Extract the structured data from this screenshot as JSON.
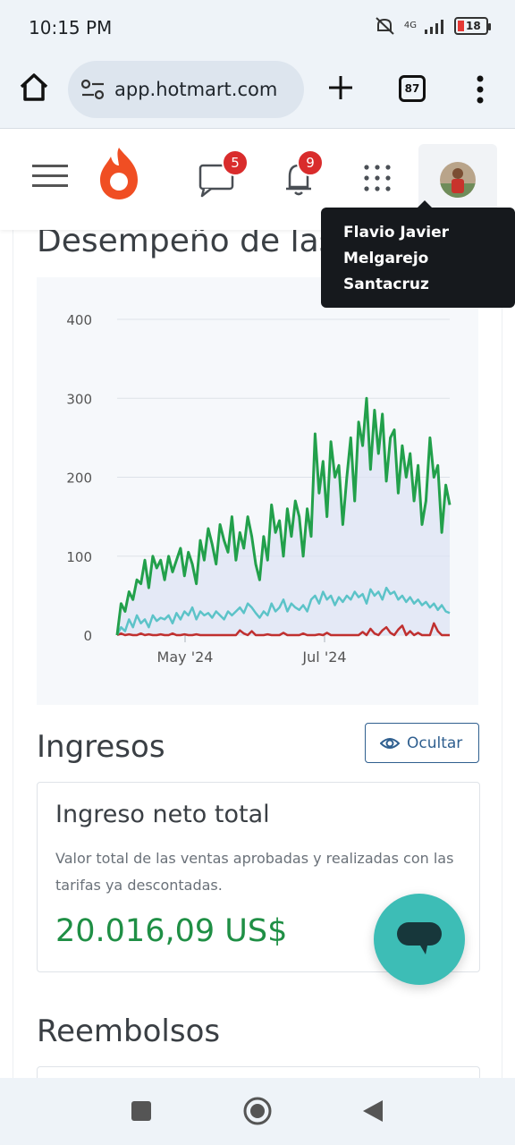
{
  "status_bar": {
    "time": "10:15 PM",
    "network": "4G",
    "battery": "18"
  },
  "browser": {
    "url": "app.hotmart.com",
    "tab_count": "87"
  },
  "header": {
    "messages_badge": "5",
    "notifications_badge": "9",
    "user_tooltip": [
      "Flavio Javier",
      "Melgarejo",
      "Santacruz"
    ]
  },
  "performance": {
    "title": "Desempeño de las"
  },
  "chart_data": {
    "type": "area",
    "x_tick_labels": [
      "May '24",
      "Jul '24"
    ],
    "y_tick_labels": [
      "400",
      "300",
      "200",
      "100",
      "0"
    ],
    "ylim": [
      0,
      400
    ],
    "grid": true,
    "colors": {
      "green": "#22a04b",
      "teal": "#5cc3c8",
      "red": "#c0302f",
      "fill": "#dde3f3"
    },
    "series": [
      {
        "color": "#22a04b",
        "values": [
          0,
          40,
          30,
          55,
          45,
          70,
          65,
          95,
          60,
          100,
          85,
          95,
          70,
          100,
          80,
          95,
          110,
          75,
          105,
          90,
          65,
          120,
          95,
          135,
          115,
          90,
          140,
          120,
          105,
          150,
          95,
          130,
          110,
          150,
          125,
          90,
          70,
          125,
          95,
          165,
          130,
          145,
          100,
          160,
          125,
          170,
          150,
          100,
          160,
          125,
          255,
          180,
          220,
          150,
          245,
          200,
          215,
          140,
          200,
          250,
          170,
          270,
          240,
          300,
          210,
          285,
          230,
          280,
          195,
          250,
          260,
          180,
          240,
          200,
          230,
          170,
          215,
          140,
          170,
          250,
          200,
          215,
          130,
          190,
          165
        ]
      },
      {
        "color": "#5cc3c8",
        "values": [
          0,
          10,
          5,
          20,
          10,
          25,
          15,
          20,
          10,
          25,
          18,
          22,
          20,
          25,
          15,
          28,
          20,
          30,
          25,
          35,
          20,
          30,
          25,
          28,
          22,
          30,
          25,
          20,
          30,
          25,
          30,
          35,
          28,
          40,
          35,
          28,
          22,
          30,
          25,
          40,
          30,
          35,
          45,
          30,
          40,
          35,
          32,
          38,
          30,
          45,
          50,
          40,
          55,
          45,
          50,
          38,
          48,
          42,
          50,
          45,
          55,
          48,
          52,
          40,
          58,
          50,
          55,
          45,
          60,
          52,
          55,
          45,
          50,
          42,
          48,
          40,
          45,
          38,
          42,
          35,
          40,
          32,
          38,
          30,
          28
        ]
      },
      {
        "color": "#c0302f",
        "values": [
          0,
          2,
          0,
          1,
          0,
          0,
          2,
          0,
          1,
          0,
          0,
          1,
          0,
          0,
          2,
          0,
          0,
          1,
          0,
          0,
          1,
          0,
          0,
          0,
          0,
          0,
          0,
          0,
          0,
          0,
          0,
          6,
          2,
          0,
          5,
          0,
          0,
          0,
          1,
          0,
          0,
          0,
          3,
          0,
          0,
          0,
          0,
          2,
          0,
          0,
          0,
          1,
          0,
          3,
          0,
          0,
          0,
          0,
          0,
          0,
          0,
          0,
          4,
          0,
          8,
          2,
          0,
          6,
          10,
          3,
          0,
          7,
          12,
          0,
          5,
          0,
          3,
          0,
          0,
          0,
          15,
          5,
          0,
          0,
          0
        ]
      }
    ]
  },
  "ingresos": {
    "title": "Ingresos",
    "hide_label": "Ocultar"
  },
  "net_income": {
    "title": "Ingreso neto total",
    "description": "Valor total de las ventas aprobadas y realizadas con las tarifas ya descontadas.",
    "value": "20.016,09 US$"
  },
  "reembolsos": {
    "title": "Reembolsos"
  },
  "icons": {
    "home": "home-icon",
    "tune": "tune-icon",
    "plus": "plus-icon",
    "menu": "more-vertical-icon",
    "hamburger": "hamburger-icon",
    "logo": "hotmart-flame-logo",
    "messages": "chat-icon",
    "notifications": "bell-icon",
    "apps": "apps-grid-icon",
    "eye": "eye-icon",
    "chat": "chat-bubble-icon"
  }
}
